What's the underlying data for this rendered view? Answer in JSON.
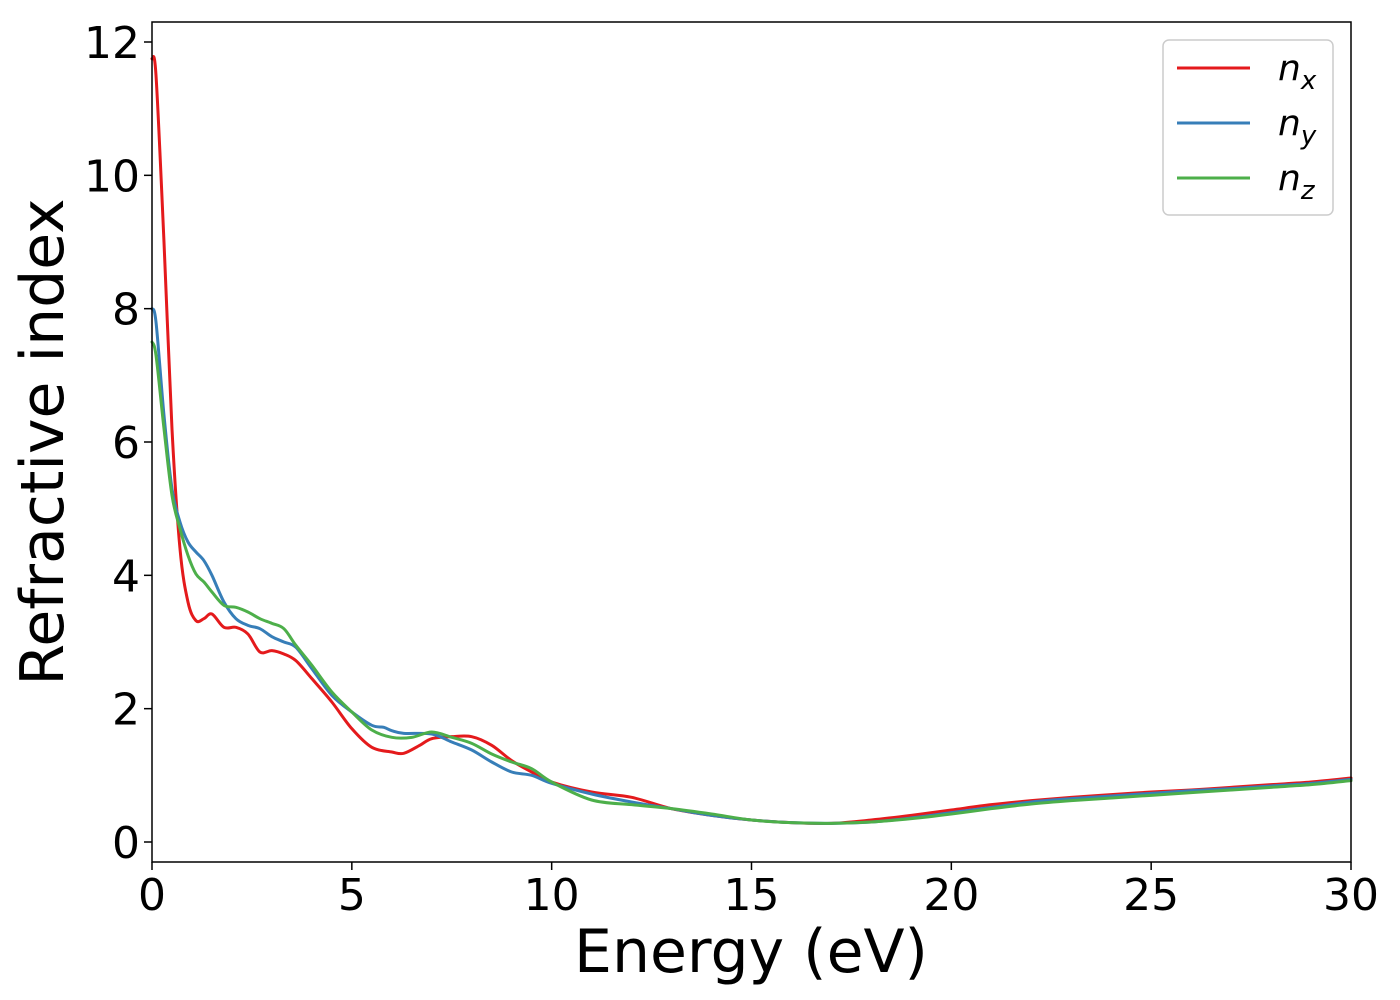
{
  "chart_data": {
    "type": "line",
    "xlabel": "Energy (eV)",
    "ylabel": "Refractive index",
    "xlim": [
      0,
      30
    ],
    "ylim": [
      -0.3,
      12.3
    ],
    "xticks": [
      0,
      5,
      10,
      15,
      20,
      25,
      30
    ],
    "yticks": [
      0,
      2,
      4,
      6,
      8,
      10,
      12
    ],
    "grid": false,
    "legend_position": "top-right",
    "series": [
      {
        "name": "n_x",
        "legend_base": "n",
        "legend_sub": "x",
        "color": "#e41a1c",
        "x": [
          0,
          0.1,
          0.3,
          0.5,
          0.7,
          0.9,
          1.1,
          1.3,
          1.5,
          1.8,
          2.1,
          2.4,
          2.7,
          3.0,
          3.3,
          3.6,
          4.0,
          4.5,
          5.0,
          5.5,
          6.0,
          6.3,
          6.7,
          7.0,
          7.5,
          8.0,
          8.5,
          9.0,
          9.5,
          10.0,
          11.0,
          12.0,
          13.0,
          14.0,
          15.0,
          16.0,
          17.0,
          18.0,
          19.0,
          20.0,
          21.0,
          22.0,
          23.0,
          24.0,
          25.0,
          26.0,
          27.0,
          28.0,
          29.0,
          30.0
        ],
        "y": [
          11.75,
          11.5,
          9.0,
          6.2,
          4.4,
          3.6,
          3.32,
          3.35,
          3.42,
          3.22,
          3.22,
          3.12,
          2.85,
          2.87,
          2.82,
          2.72,
          2.45,
          2.1,
          1.7,
          1.42,
          1.35,
          1.33,
          1.45,
          1.55,
          1.58,
          1.58,
          1.45,
          1.22,
          1.05,
          0.9,
          0.75,
          0.67,
          0.5,
          0.4,
          0.33,
          0.29,
          0.28,
          0.33,
          0.4,
          0.48,
          0.56,
          0.62,
          0.67,
          0.71,
          0.75,
          0.78,
          0.82,
          0.86,
          0.9,
          0.96
        ]
      },
      {
        "name": "n_y",
        "legend_base": "n",
        "legend_sub": "y",
        "color": "#377eb8",
        "x": [
          0,
          0.1,
          0.3,
          0.5,
          0.7,
          0.9,
          1.1,
          1.3,
          1.5,
          1.8,
          2.1,
          2.4,
          2.7,
          3.0,
          3.3,
          3.6,
          4.0,
          4.5,
          5.0,
          5.5,
          5.8,
          6.0,
          6.3,
          7.0,
          7.5,
          8.0,
          8.5,
          9.0,
          9.5,
          10.0,
          11.0,
          12.0,
          13.0,
          14.0,
          15.0,
          16.0,
          17.0,
          18.0,
          19.0,
          20.0,
          21.0,
          22.0,
          23.0,
          24.0,
          25.0,
          26.0,
          27.0,
          28.0,
          29.0,
          30.0
        ],
        "y": [
          8.0,
          7.8,
          6.4,
          5.3,
          4.8,
          4.5,
          4.35,
          4.22,
          4.0,
          3.6,
          3.35,
          3.25,
          3.2,
          3.08,
          3.0,
          2.92,
          2.6,
          2.2,
          1.95,
          1.75,
          1.72,
          1.67,
          1.63,
          1.62,
          1.5,
          1.38,
          1.2,
          1.05,
          1.0,
          0.88,
          0.72,
          0.6,
          0.5,
          0.4,
          0.33,
          0.29,
          0.28,
          0.3,
          0.36,
          0.44,
          0.52,
          0.6,
          0.65,
          0.69,
          0.73,
          0.77,
          0.8,
          0.84,
          0.88,
          0.94
        ]
      },
      {
        "name": "n_z",
        "legend_base": "n",
        "legend_sub": "z",
        "color": "#4daf4a",
        "x": [
          0,
          0.1,
          0.3,
          0.5,
          0.7,
          0.9,
          1.1,
          1.3,
          1.5,
          1.8,
          2.1,
          2.4,
          2.7,
          3.0,
          3.3,
          3.6,
          4.0,
          4.5,
          5.0,
          5.5,
          6.0,
          6.5,
          7.0,
          7.5,
          8.0,
          8.5,
          9.0,
          9.5,
          10.0,
          11.0,
          12.0,
          13.0,
          14.0,
          15.0,
          16.0,
          17.0,
          18.0,
          19.0,
          20.0,
          21.0,
          22.0,
          23.0,
          24.0,
          25.0,
          26.0,
          27.0,
          28.0,
          29.0,
          30.0
        ],
        "y": [
          7.5,
          7.3,
          6.2,
          5.2,
          4.7,
          4.3,
          4.02,
          3.9,
          3.75,
          3.55,
          3.52,
          3.45,
          3.35,
          3.28,
          3.2,
          2.95,
          2.65,
          2.25,
          1.95,
          1.68,
          1.57,
          1.57,
          1.65,
          1.57,
          1.48,
          1.32,
          1.2,
          1.1,
          0.9,
          0.63,
          0.56,
          0.5,
          0.42,
          0.33,
          0.29,
          0.28,
          0.3,
          0.35,
          0.42,
          0.5,
          0.57,
          0.62,
          0.66,
          0.7,
          0.74,
          0.78,
          0.82,
          0.86,
          0.92
        ]
      }
    ]
  }
}
